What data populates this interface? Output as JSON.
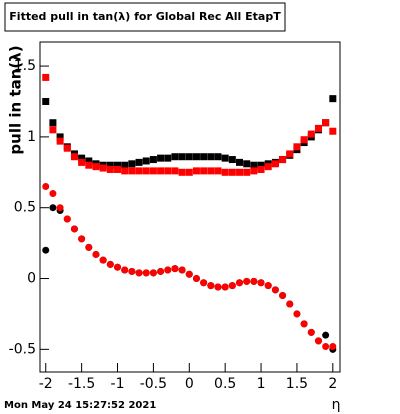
{
  "chart_data": {
    "type": "scatter",
    "title": "Fitted pull in tan(λ) for Global Rec All EtapT",
    "y_label": "pull in tan(λ)",
    "x_label": "η",
    "timestamp": "Mon May 24 15:27:52 2021",
    "xlim": [
      -2.08,
      2.1
    ],
    "ylim": [
      -0.66,
      1.67
    ],
    "xticks": [
      -2,
      -1.5,
      -1,
      -0.5,
      0,
      0.5,
      1,
      1.5,
      2
    ],
    "yticks": [
      -0.5,
      0,
      0.5,
      1,
      1.5
    ],
    "x": [
      -2.0,
      -1.9,
      -1.8,
      -1.7,
      -1.6,
      -1.5,
      -1.4,
      -1.3,
      -1.2,
      -1.1,
      -1.0,
      -0.9,
      -0.8,
      -0.7,
      -0.6,
      -0.5,
      -0.4,
      -0.3,
      -0.2,
      -0.1,
      0,
      0.1,
      0.2,
      0.3,
      0.4,
      0.5,
      0.6,
      0.7,
      0.8,
      0.9,
      1.0,
      1.1,
      1.2,
      1.3,
      1.4,
      1.5,
      1.6,
      1.7,
      1.8,
      1.9,
      2.0
    ],
    "series": [
      {
        "color": "#000000",
        "marker": "square",
        "values": [
          1.25,
          1.1,
          1.0,
          0.93,
          0.88,
          0.85,
          0.83,
          0.81,
          0.8,
          0.8,
          0.8,
          0.8,
          0.81,
          0.82,
          0.83,
          0.84,
          0.85,
          0.85,
          0.86,
          0.86,
          0.86,
          0.86,
          0.86,
          0.86,
          0.86,
          0.85,
          0.84,
          0.82,
          0.81,
          0.8,
          0.8,
          0.81,
          0.82,
          0.84,
          0.87,
          0.91,
          0.96,
          1.0,
          1.05,
          1.1,
          1.27
        ]
      },
      {
        "color": "#000000",
        "marker": "circle",
        "values": [
          0.2,
          0.5,
          0.48,
          0.42,
          0.35,
          0.28,
          0.22,
          0.17,
          0.13,
          0.1,
          0.08,
          0.06,
          0.05,
          0.04,
          0.04,
          0.04,
          0.05,
          0.06,
          0.07,
          0.06,
          0.03,
          0.0,
          -0.03,
          -0.05,
          -0.06,
          -0.06,
          -0.05,
          -0.03,
          -0.02,
          -0.02,
          -0.03,
          -0.05,
          -0.08,
          -0.12,
          -0.18,
          -0.25,
          -0.32,
          -0.38,
          -0.44,
          -0.4,
          -0.5
        ]
      },
      {
        "color": "#ff0000",
        "marker": "square",
        "values": [
          1.42,
          1.05,
          0.97,
          0.92,
          0.86,
          0.82,
          0.8,
          0.79,
          0.78,
          0.77,
          0.77,
          0.76,
          0.76,
          0.76,
          0.76,
          0.76,
          0.76,
          0.76,
          0.76,
          0.75,
          0.75,
          0.76,
          0.76,
          0.76,
          0.76,
          0.75,
          0.75,
          0.75,
          0.75,
          0.76,
          0.77,
          0.79,
          0.81,
          0.84,
          0.88,
          0.93,
          0.98,
          1.02,
          1.06,
          1.1,
          1.04
        ]
      },
      {
        "color": "#ff0000",
        "marker": "circle",
        "values": [
          0.65,
          0.6,
          0.5,
          0.42,
          0.35,
          0.28,
          0.22,
          0.17,
          0.13,
          0.1,
          0.08,
          0.06,
          0.05,
          0.04,
          0.04,
          0.04,
          0.05,
          0.06,
          0.07,
          0.06,
          0.03,
          0.0,
          -0.03,
          -0.05,
          -0.06,
          -0.06,
          -0.05,
          -0.03,
          -0.02,
          -0.02,
          -0.03,
          -0.05,
          -0.08,
          -0.12,
          -0.18,
          -0.25,
          -0.32,
          -0.38,
          -0.44,
          -0.48,
          -0.48
        ]
      }
    ]
  }
}
